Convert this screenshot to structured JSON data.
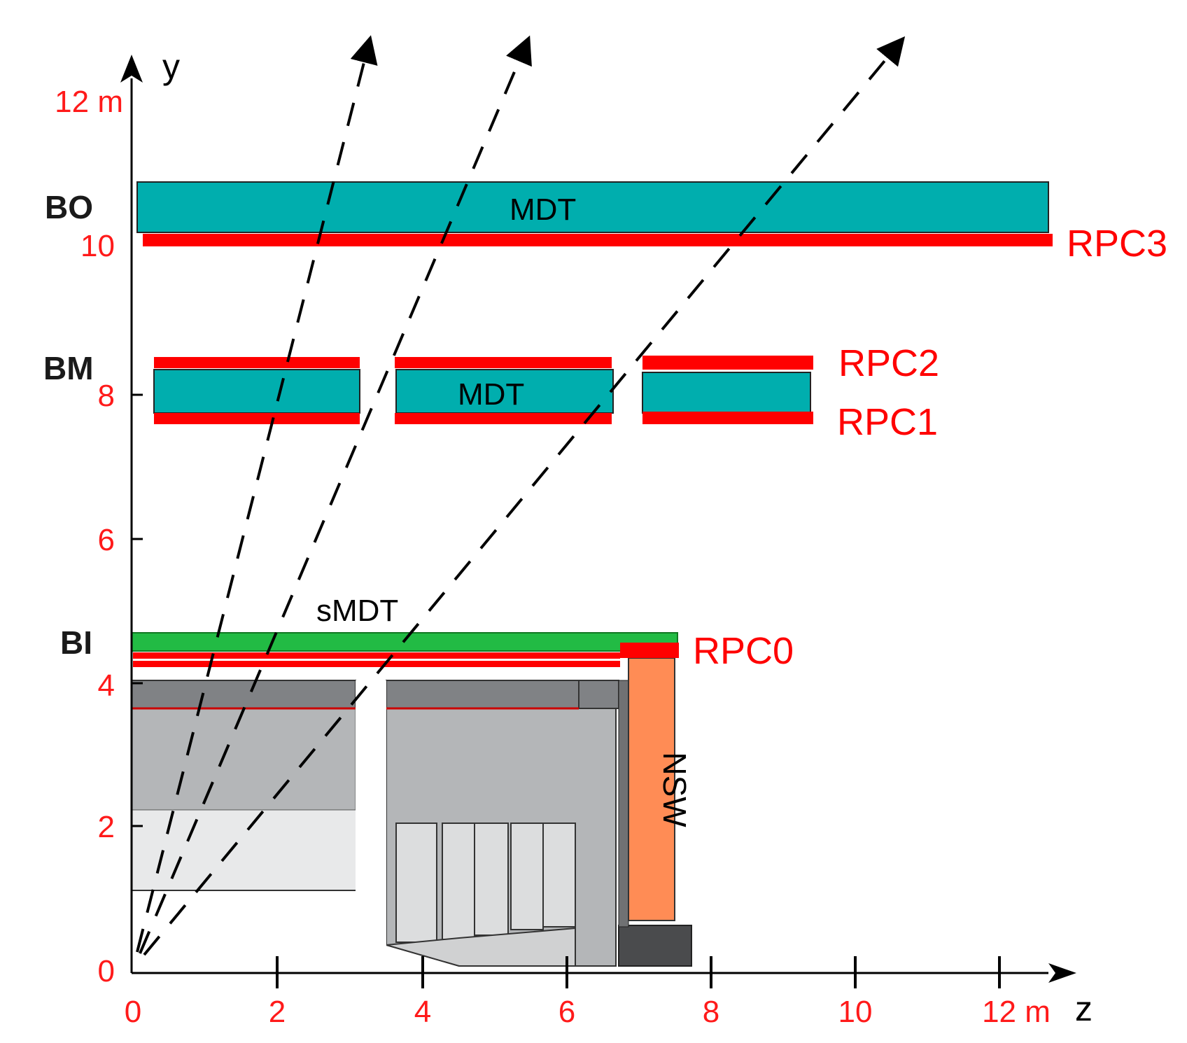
{
  "axes": {
    "y_name": "y",
    "z_name": "z",
    "y_ticks": [
      "12 m",
      "10",
      "8",
      "6",
      "4",
      "2",
      "0"
    ],
    "z_ticks": [
      "0",
      "2",
      "4",
      "6",
      "8",
      "10",
      "12 m"
    ]
  },
  "stations": {
    "bo": "BO",
    "bm": "BM",
    "bi": "BI"
  },
  "labels": {
    "mdt_outer": "MDT",
    "mdt_middle": "MDT",
    "smdt": "sMDT",
    "nsw": "NSW",
    "rpc3": "RPC3",
    "rpc2": "RPC2",
    "rpc1": "RPC1",
    "rpc0": "RPC0"
  },
  "colors": {
    "mdt": "#00aeae",
    "smdt": "#22bb44",
    "rpc": "#ff0000",
    "nsw": "#ff8c55",
    "calorimeter_dark": "#808285",
    "calorimeter_mid": "#b4b6b8",
    "calorimeter_light": "#e8e9ea",
    "shielding": "#4a4b4d",
    "tracks": "#000000"
  }
}
